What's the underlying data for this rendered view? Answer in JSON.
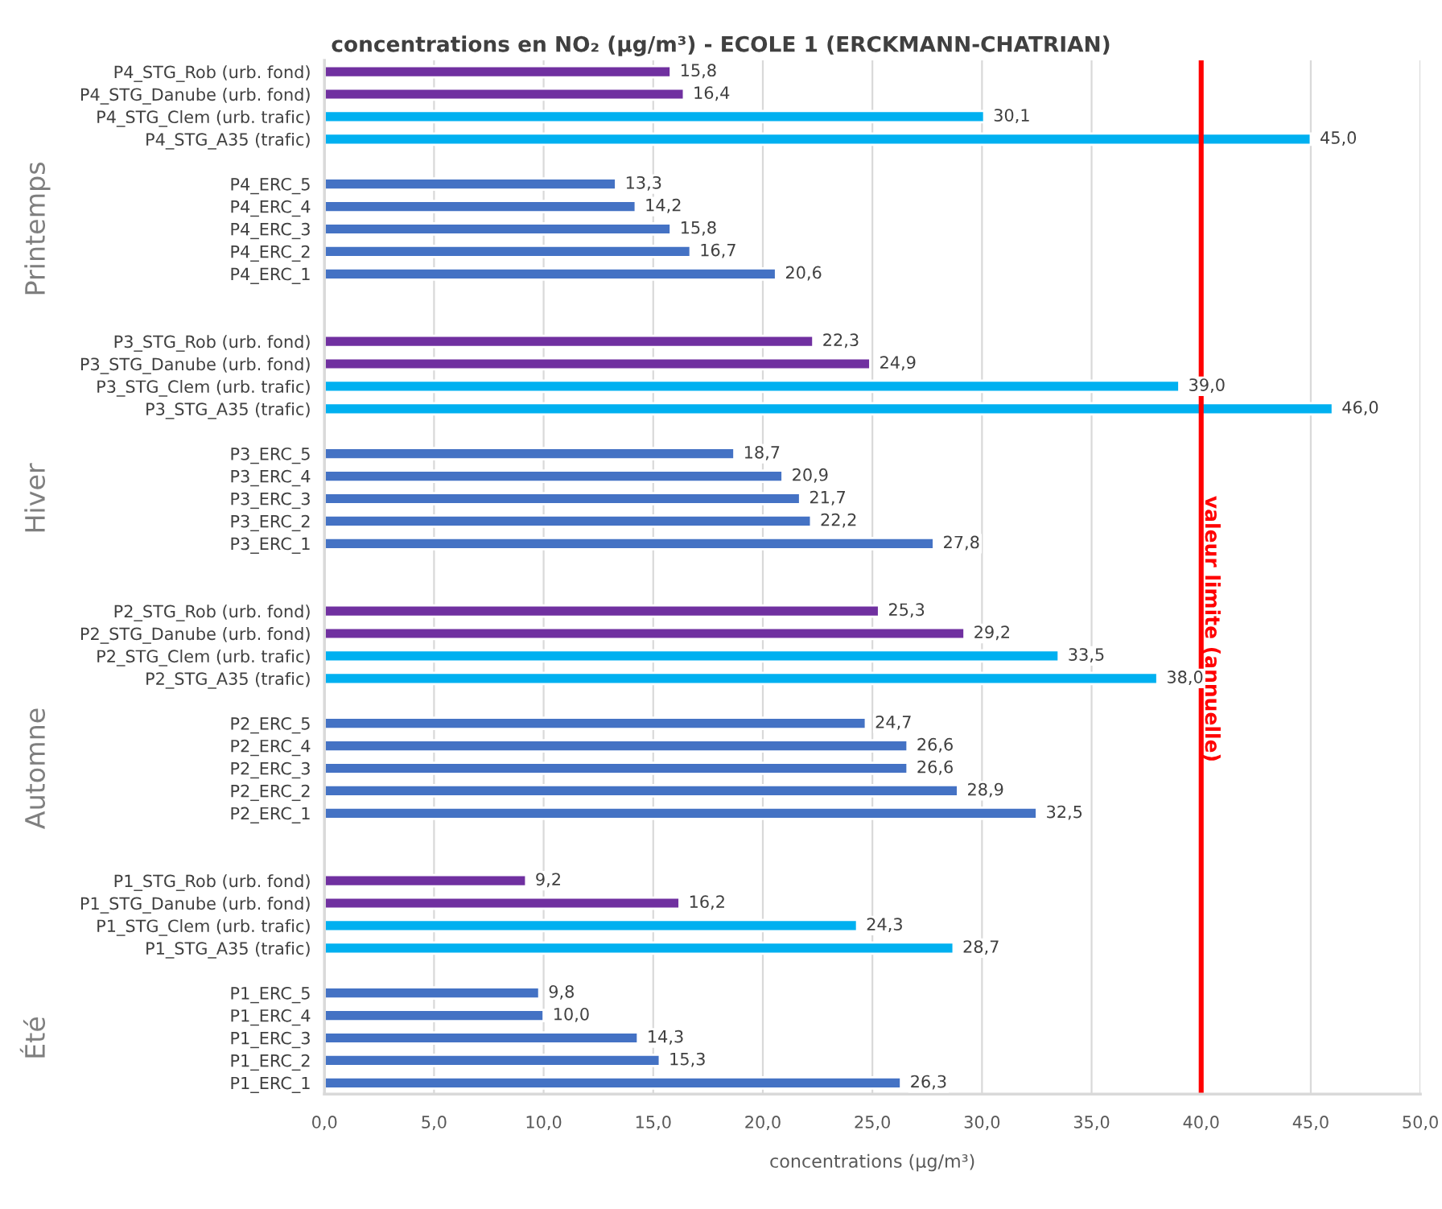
{
  "chart_data": {
    "type": "bar",
    "orientation": "horizontal",
    "title": "concentrations en NO₂ (µg/m³) - ECOLE 1 (ERCKMANN-CHATRIAN)",
    "xlabel": "concentrations (µg/m³)",
    "categories": [
      "P4_STG_Rob (urb. fond)",
      "P4_STG_Danube (urb. fond)",
      "P4_STG_Clem (urb. trafic)",
      "P4_STG_A35 (trafic)",
      null,
      "P4_ERC_5",
      "P4_ERC_4",
      "P4_ERC_3",
      "P4_ERC_2",
      "P4_ERC_1",
      null,
      null,
      "P3_STG_Rob (urb. fond)",
      "P3_STG_Danube (urb. fond)",
      "P3_STG_Clem (urb. trafic)",
      "P3_STG_A35 (trafic)",
      null,
      "P3_ERC_5",
      "P3_ERC_4",
      "P3_ERC_3",
      "P3_ERC_2",
      "P3_ERC_1",
      null,
      null,
      "P2_STG_Rob (urb. fond)",
      "P2_STG_Danube (urb. fond)",
      "P2_STG_Clem (urb. trafic)",
      "P2_STG_A35 (trafic)",
      null,
      "P2_ERC_5",
      "P2_ERC_4",
      "P2_ERC_3",
      "P2_ERC_2",
      "P2_ERC_1",
      null,
      null,
      "P1_STG_Rob (urb. fond)",
      "P1_STG_Danube (urb. fond)",
      "P1_STG_Clem (urb. trafic)",
      "P1_STG_A35 (trafic)",
      null,
      "P1_ERC_5",
      "P1_ERC_4",
      "P1_ERC_3",
      "P1_ERC_2",
      "P1_ERC_1"
    ],
    "values": [
      15.8,
      16.4,
      30.1,
      45.0,
      null,
      13.3,
      14.2,
      15.8,
      16.7,
      20.6,
      null,
      null,
      22.3,
      24.9,
      39.0,
      46.0,
      null,
      18.7,
      20.9,
      21.7,
      22.2,
      27.8,
      null,
      null,
      25.3,
      29.2,
      33.5,
      38.0,
      null,
      24.7,
      26.6,
      26.6,
      28.9,
      32.5,
      null,
      null,
      9.2,
      16.2,
      24.3,
      28.7,
      null,
      9.8,
      10.0,
      14.3,
      15.3,
      26.3
    ],
    "value_labels": [
      "15,8",
      "16,4",
      "30,1",
      "45,0",
      null,
      "13,3",
      "14,2",
      "15,8",
      "16,7",
      "20,6",
      null,
      null,
      "22,3",
      "24,9",
      "39,0",
      "46,0",
      null,
      "18,7",
      "20,9",
      "21,7",
      "22,2",
      "27,8",
      null,
      null,
      "25,3",
      "29,2",
      "33,5",
      "38,0",
      null,
      "24,7",
      "26,6",
      "26,6",
      "28,9",
      "32,5",
      null,
      null,
      "9,2",
      "16,2",
      "24,3",
      "28,7",
      null,
      "9,8",
      "10,0",
      "14,3",
      "15,3",
      "26,3"
    ],
    "colors": [
      "#7030a0",
      "#7030a0",
      "#00b0f0",
      "#00b0f0",
      null,
      "#4472c4",
      "#4472c4",
      "#4472c4",
      "#4472c4",
      "#4472c4",
      null,
      null,
      "#7030a0",
      "#7030a0",
      "#00b0f0",
      "#00b0f0",
      null,
      "#4472c4",
      "#4472c4",
      "#4472c4",
      "#4472c4",
      "#4472c4",
      null,
      null,
      "#7030a0",
      "#7030a0",
      "#00b0f0",
      "#00b0f0",
      null,
      "#4472c4",
      "#4472c4",
      "#4472c4",
      "#4472c4",
      "#4472c4",
      null,
      null,
      "#7030a0",
      "#7030a0",
      "#00b0f0",
      "#00b0f0",
      null,
      "#4472c4",
      "#4472c4",
      "#4472c4",
      "#4472c4",
      "#4472c4"
    ],
    "xlim": [
      0,
      50
    ],
    "xticks": [
      {
        "value": 0,
        "label": "0,0"
      },
      {
        "value": 5,
        "label": "5,0"
      },
      {
        "value": 10,
        "label": "10,0"
      },
      {
        "value": 15,
        "label": "15,0"
      },
      {
        "value": 20,
        "label": "20,0"
      },
      {
        "value": 25,
        "label": "25,0"
      },
      {
        "value": 30,
        "label": "30,0"
      },
      {
        "value": 35,
        "label": "35,0"
      },
      {
        "value": 40,
        "label": "40,0"
      },
      {
        "value": 45,
        "label": "45,0"
      },
      {
        "value": 50,
        "label": "50,0"
      }
    ],
    "ref_lines": [
      {
        "axis": "x",
        "value": 40,
        "label": "valeur limite (annuelle)",
        "color": "#ff0000"
      }
    ],
    "annotations": [
      "Printemps",
      "Hiver",
      "Automne",
      "Été"
    ],
    "grid": "x"
  }
}
